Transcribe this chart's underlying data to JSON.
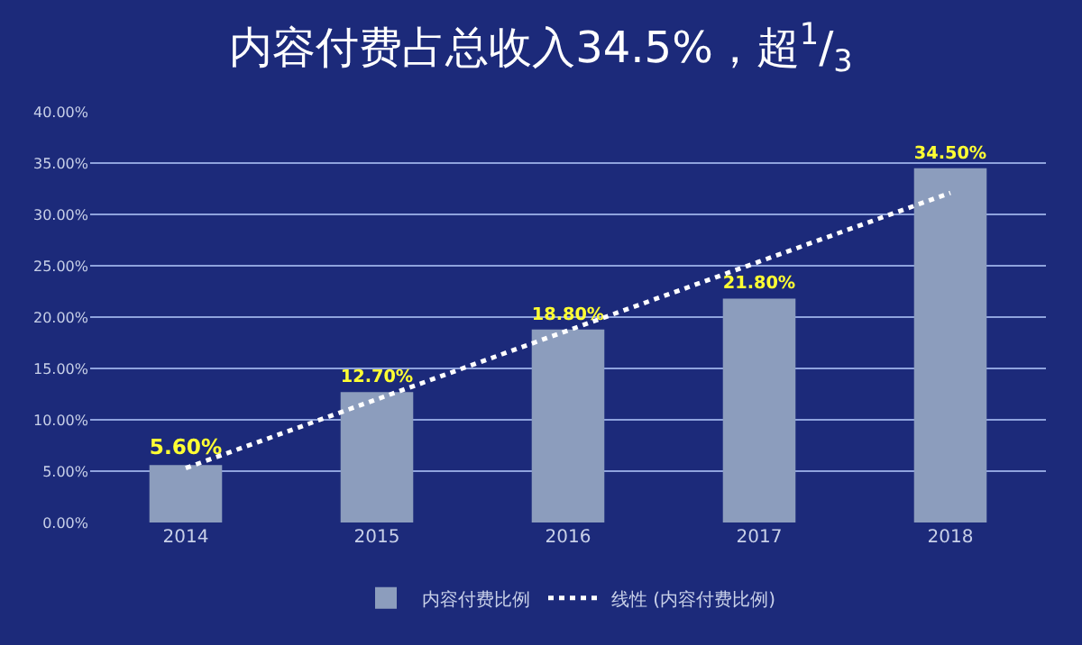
{
  "chart_data": {
    "type": "bar",
    "title": "内容付费占总收入34.5%，超$^{1}$/$_{3}$",
    "categories": [
      "2014",
      "2015",
      "2016",
      "2017",
      "2018"
    ],
    "series": [
      {
        "name": "内容付费比例",
        "color": "#8c9dbd",
        "values": [
          5.6,
          12.7,
          18.8,
          21.8,
          34.5
        ],
        "value_labels": [
          "5.60%",
          "12.70%",
          "18.80%",
          "21.80%",
          "34.50%"
        ]
      },
      {
        "name": "线性 (内容付费比例)",
        "type": "line",
        "color": "#ffffff",
        "line_style": "dotted",
        "marker": "none",
        "values": [
          5.3,
          12,
          18.7,
          25.4,
          32.1
        ]
      }
    ],
    "ylim": [
      0,
      40
    ],
    "yticks": [
      {
        "value": 0,
        "label": "0.00%"
      },
      {
        "value": 5,
        "label": "5.00%"
      },
      {
        "value": 10,
        "label": "10.00%"
      },
      {
        "value": 15,
        "label": "15.00%"
      },
      {
        "value": 20,
        "label": "20.00%"
      },
      {
        "value": 25,
        "label": "25.00%"
      },
      {
        "value": 30,
        "label": "30.00%"
      },
      {
        "value": 35,
        "label": "35.00%"
      },
      {
        "value": 40,
        "label": "40.00%"
      }
    ],
    "grid": "y",
    "legend": "bottom"
  }
}
